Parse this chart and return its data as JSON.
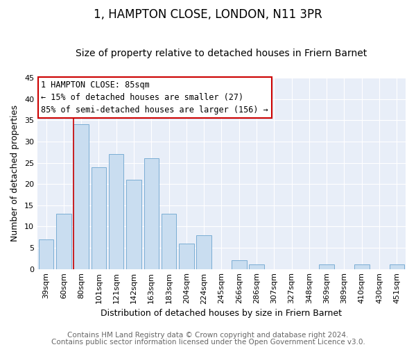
{
  "title": "1, HAMPTON CLOSE, LONDON, N11 3PR",
  "subtitle": "Size of property relative to detached houses in Friern Barnet",
  "xlabel": "Distribution of detached houses by size in Friern Barnet",
  "ylabel": "Number of detached properties",
  "bar_labels": [
    "39sqm",
    "60sqm",
    "80sqm",
    "101sqm",
    "121sqm",
    "142sqm",
    "163sqm",
    "183sqm",
    "204sqm",
    "224sqm",
    "245sqm",
    "266sqm",
    "286sqm",
    "307sqm",
    "327sqm",
    "348sqm",
    "369sqm",
    "389sqm",
    "410sqm",
    "430sqm",
    "451sqm"
  ],
  "bar_values": [
    7,
    13,
    34,
    24,
    27,
    21,
    26,
    13,
    6,
    8,
    0,
    2,
    1,
    0,
    0,
    0,
    1,
    0,
    1,
    0,
    1
  ],
  "bar_color": "#c9ddf0",
  "bar_edge_color": "#7aadd4",
  "vline_x": 1.575,
  "vline_color": "#cc0000",
  "ylim": [
    0,
    45
  ],
  "yticks": [
    0,
    5,
    10,
    15,
    20,
    25,
    30,
    35,
    40,
    45
  ],
  "annotation_title": "1 HAMPTON CLOSE: 85sqm",
  "annotation_line1": "← 15% of detached houses are smaller (27)",
  "annotation_line2": "85% of semi-detached houses are larger (156) →",
  "annotation_box_color": "#cc0000",
  "footer_line1": "Contains HM Land Registry data © Crown copyright and database right 2024.",
  "footer_line2": "Contains public sector information licensed under the Open Government Licence v3.0.",
  "plot_bg_color": "#e8eef8",
  "fig_bg_color": "#ffffff",
  "title_fontsize": 12,
  "subtitle_fontsize": 10,
  "axis_label_fontsize": 9,
  "tick_fontsize": 8,
  "annotation_fontsize": 8.5,
  "footer_fontsize": 7.5,
  "grid_color": "#ffffff"
}
